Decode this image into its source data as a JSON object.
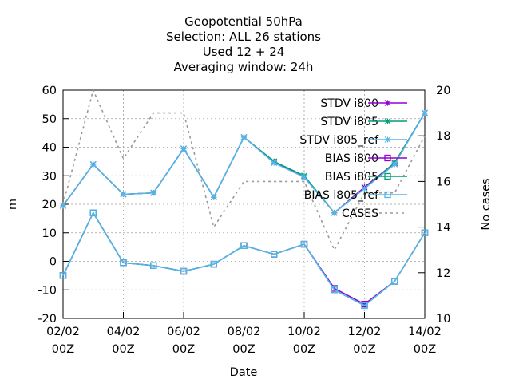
{
  "chart_data": {
    "type": "line",
    "title_lines": [
      "Geopotential 50hPa",
      "Selection: ALL      26 stations",
      "Used  12 + 24",
      "Averaging window: 24h"
    ],
    "xlabel": "Date",
    "ylabel": "m",
    "y2label": "No cases",
    "x_ticks": [
      {
        "x": 0,
        "line1": "02/02",
        "line2": "00Z"
      },
      {
        "x": 2,
        "line1": "04/02",
        "line2": "00Z"
      },
      {
        "x": 4,
        "line1": "06/02",
        "line2": "00Z"
      },
      {
        "x": 6,
        "line1": "08/02",
        "line2": "00Z"
      },
      {
        "x": 8,
        "line1": "10/02",
        "line2": "00Z"
      },
      {
        "x": 10,
        "line1": "12/02",
        "line2": "00Z"
      },
      {
        "x": 12,
        "line1": "14/02",
        "line2": "00Z"
      }
    ],
    "xlim": [
      0,
      12
    ],
    "ylim": [
      -20,
      60
    ],
    "y_ticks": [
      -20,
      -10,
      0,
      10,
      20,
      30,
      40,
      50,
      60
    ],
    "y2lim": [
      10,
      20
    ],
    "y2_ticks": [
      10,
      12,
      14,
      16,
      18,
      20
    ],
    "grid": true,
    "legend_position": "top-right",
    "x": [
      0,
      1,
      2,
      3,
      4,
      5,
      6,
      7,
      8,
      9,
      10,
      11,
      12
    ],
    "series": [
      {
        "name": "STDV i800",
        "color": "#9400d3",
        "marker": "star",
        "dash": "solid",
        "axis": "y1",
        "values": [
          19.5,
          34,
          23.5,
          24,
          39.5,
          22.5,
          43.5,
          35,
          29.5,
          17,
          26,
          34.5,
          52
        ]
      },
      {
        "name": "STDV i805",
        "color": "#009e73",
        "marker": "star",
        "dash": "solid",
        "axis": "y1",
        "values": [
          19.5,
          34,
          23.5,
          24,
          39.5,
          22.5,
          43.5,
          35,
          30,
          17,
          25.5,
          34.5,
          52
        ]
      },
      {
        "name": "STDV i805_ref",
        "legend_text": "STDV i805_ref",
        "color": "#56b4e9",
        "marker": "star",
        "dash": "solid",
        "axis": "y1",
        "values": [
          19.5,
          34,
          23.5,
          24,
          39.5,
          22.5,
          43.5,
          34.5,
          29.5,
          17,
          25.5,
          34,
          52
        ]
      },
      {
        "name": "BIAS i800",
        "color": "#9400d3",
        "marker": "square",
        "dash": "solid",
        "axis": "y1",
        "values": [
          -5,
          17,
          -0.5,
          -1.5,
          -3.5,
          -1,
          5.5,
          2.5,
          6,
          -9.5,
          -15,
          -7,
          10
        ]
      },
      {
        "name": "BIAS i805",
        "color": "#009e73",
        "marker": "square",
        "dash": "solid",
        "axis": "y1",
        "values": [
          -5,
          17,
          -0.5,
          -1.5,
          -3.5,
          -1,
          5.5,
          2.5,
          6,
          -10,
          -15.5,
          -7,
          10
        ]
      },
      {
        "name": "BIAS i805_ref",
        "legend_text": "BIAS i805_ref",
        "color": "#56b4e9",
        "marker": "square",
        "dash": "solid",
        "axis": "y1",
        "values": [
          -5,
          17,
          -0.5,
          -1.5,
          -3.5,
          -1,
          5.5,
          2.5,
          6,
          -10,
          -15.5,
          -7,
          10
        ]
      },
      {
        "name": "CASES",
        "color": "#999999",
        "marker": "none",
        "dash": "dotted",
        "axis": "y2",
        "values": [
          15,
          20,
          17,
          19,
          19,
          14,
          16,
          16,
          16,
          13,
          15.5,
          15.5,
          18
        ]
      }
    ]
  }
}
